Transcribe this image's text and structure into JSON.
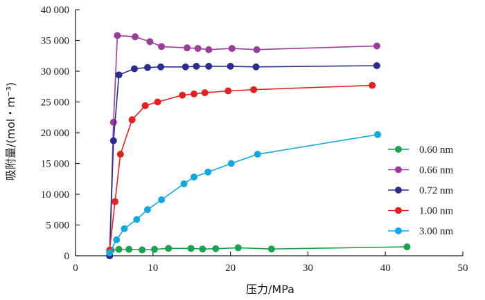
{
  "chart_data": {
    "type": "line",
    "xlabel": "压力/MPa",
    "ylabel": "吸附量/(mol・m⁻³)",
    "xlim": [
      0,
      50
    ],
    "ylim": [
      0,
      40000
    ],
    "xticks": [
      0,
      10,
      20,
      30,
      40,
      50
    ],
    "xtick_labels": [
      "0",
      "10",
      "20",
      "30",
      "40",
      "50"
    ],
    "yticks": [
      0,
      5000,
      10000,
      15000,
      20000,
      25000,
      30000,
      35000,
      40000
    ],
    "ytick_labels": [
      "0",
      "5 000",
      "10 000",
      "15 000",
      "20 000",
      "25 000",
      "30 000",
      "35 000",
      "40 000"
    ],
    "grid": false,
    "legend_position": "right",
    "series": [
      {
        "name": "0.60 nm",
        "color": "#1aa24f",
        "points": [
          [
            4.6,
            900
          ],
          [
            5.6,
            1050
          ],
          [
            6.9,
            1050
          ],
          [
            8.6,
            950
          ],
          [
            10.2,
            1050
          ],
          [
            12.0,
            1200
          ],
          [
            14.9,
            1200
          ],
          [
            16.4,
            1100
          ],
          [
            18.1,
            1150
          ],
          [
            21.0,
            1300
          ],
          [
            25.3,
            1100
          ],
          [
            42.8,
            1450
          ]
        ]
      },
      {
        "name": "0.66 nm",
        "color": "#9c3b9e",
        "points": [
          [
            4.4,
            0
          ],
          [
            4.9,
            21700
          ],
          [
            5.4,
            35800
          ],
          [
            7.7,
            35600
          ],
          [
            9.6,
            34800
          ],
          [
            11.1,
            34000
          ],
          [
            14.4,
            33800
          ],
          [
            15.8,
            33700
          ],
          [
            17.2,
            33500
          ],
          [
            20.2,
            33700
          ],
          [
            23.4,
            33500
          ],
          [
            38.9,
            34100
          ]
        ]
      },
      {
        "name": "0.72 nm",
        "color": "#2a2d8b",
        "points": [
          [
            4.4,
            0
          ],
          [
            4.9,
            18700
          ],
          [
            5.6,
            29400
          ],
          [
            7.6,
            30400
          ],
          [
            9.3,
            30600
          ],
          [
            11.0,
            30700
          ],
          [
            14.2,
            30700
          ],
          [
            15.6,
            30800
          ],
          [
            17.2,
            30800
          ],
          [
            20.0,
            30800
          ],
          [
            23.3,
            30700
          ],
          [
            38.9,
            30900
          ]
        ]
      },
      {
        "name": "1.00 nm",
        "color": "#e52020",
        "points": [
          [
            4.4,
            900
          ],
          [
            5.1,
            8800
          ],
          [
            5.8,
            16500
          ],
          [
            7.3,
            22100
          ],
          [
            9.0,
            24400
          ],
          [
            10.6,
            25000
          ],
          [
            13.8,
            26100
          ],
          [
            15.3,
            26300
          ],
          [
            16.7,
            26500
          ],
          [
            19.7,
            26800
          ],
          [
            23.0,
            27000
          ],
          [
            38.3,
            27700
          ]
        ]
      },
      {
        "name": "3.00 nm",
        "color": "#14a8e0",
        "points": [
          [
            4.4,
            500
          ],
          [
            5.3,
            2600
          ],
          [
            6.3,
            4400
          ],
          [
            7.9,
            5900
          ],
          [
            9.3,
            7500
          ],
          [
            11.1,
            9100
          ],
          [
            14.0,
            11700
          ],
          [
            15.3,
            12800
          ],
          [
            17.1,
            13600
          ],
          [
            20.1,
            15000
          ],
          [
            23.5,
            16500
          ],
          [
            39.0,
            19700
          ]
        ]
      }
    ]
  }
}
